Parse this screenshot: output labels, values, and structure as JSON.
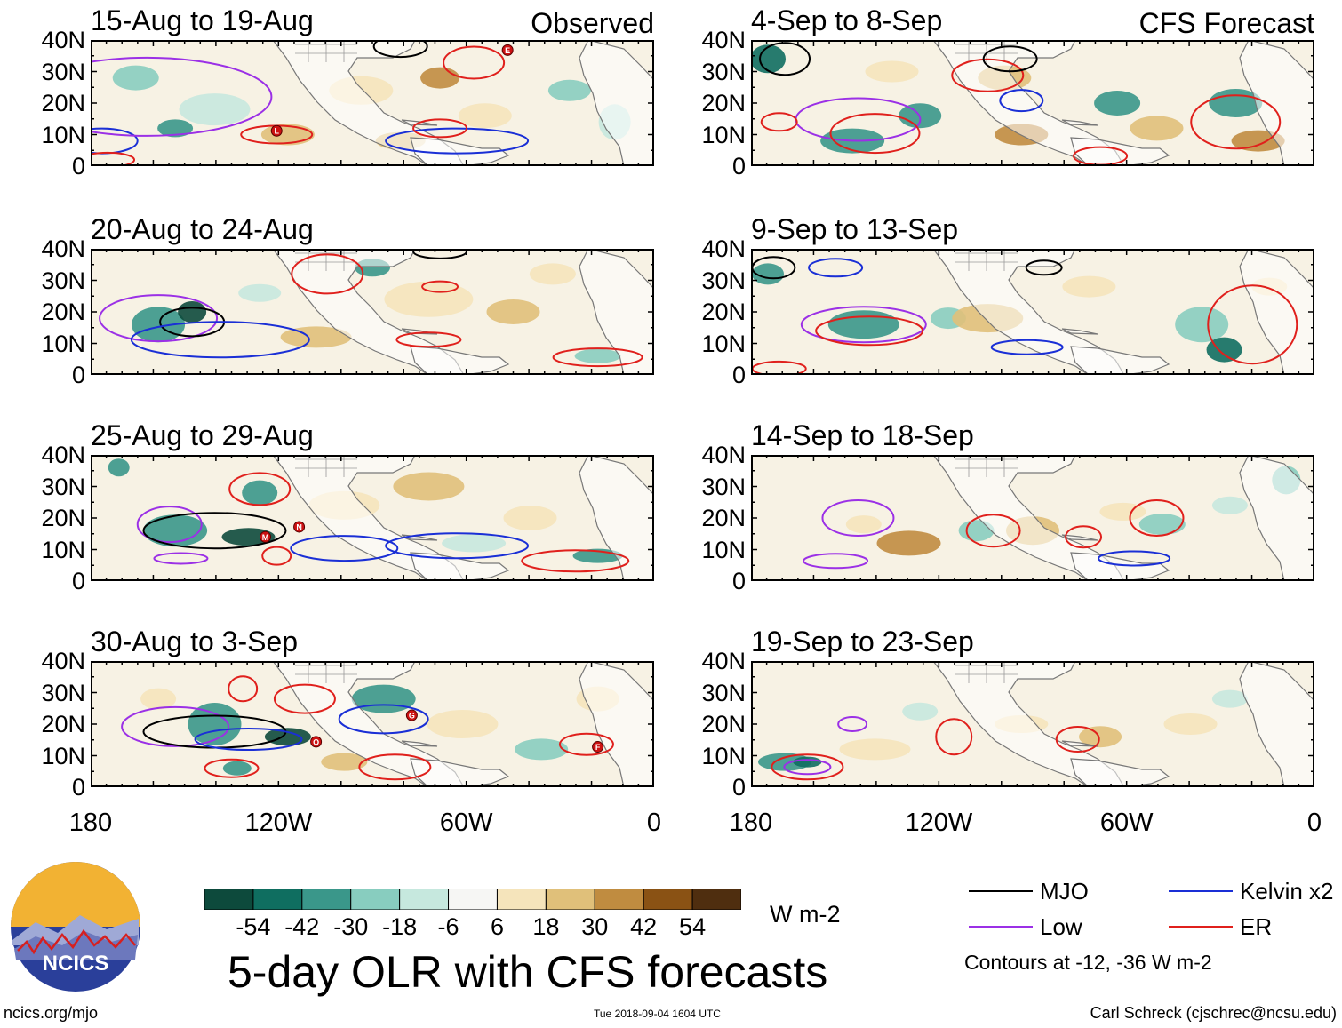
{
  "observed_label": "Observed",
  "forecast_label": "CFS Forecast",
  "main_title": "5-day OLR with CFS forecasts",
  "panels_observed": [
    {
      "period": "15-Aug to 19-Aug"
    },
    {
      "period": "20-Aug to 24-Aug"
    },
    {
      "period": "25-Aug to 29-Aug"
    },
    {
      "period": "30-Aug to 3-Sep"
    }
  ],
  "panels_forecast": [
    {
      "period": "4-Sep to 8-Sep"
    },
    {
      "period": "9-Sep to 13-Sep"
    },
    {
      "period": "14-Sep to 18-Sep"
    },
    {
      "period": "19-Sep to 23-Sep"
    }
  ],
  "y_ticks": [
    "40N",
    "30N",
    "20N",
    "10N",
    "0"
  ],
  "x_ticks": [
    "180",
    "120W",
    "60W",
    "0"
  ],
  "storm_markers_observed": [
    [
      "E",
      "L"
    ],
    [],
    [
      "M",
      "N"
    ],
    [
      "O",
      "G",
      "F"
    ]
  ],
  "colorbar": {
    "colors": [
      "#0d4a3c",
      "#0f6e60",
      "#3a978a",
      "#88cdbf",
      "#c6e8de",
      "#f6f6f4",
      "#f5e4bb",
      "#e0c07a",
      "#c08c40",
      "#8a5214",
      "#4f2e0f"
    ],
    "ticks": [
      "-54",
      "-42",
      "-30",
      "-18",
      "-6",
      "6",
      "18",
      "30",
      "42",
      "54"
    ],
    "units": "W m-2"
  },
  "legend": {
    "items": [
      {
        "label": "MJO",
        "color": "#000000"
      },
      {
        "label": "Kelvin x2",
        "color": "#1a2fd6"
      },
      {
        "label": "Low",
        "color": "#9b30e6"
      },
      {
        "label": "ER",
        "color": "#e0201c"
      }
    ],
    "note": "Contours at -12, -36 W m-2"
  },
  "logo_text": "NCICS",
  "footer": {
    "url": "ncics.org/mjo",
    "timestamp": "Tue 2018-09-04 1604 UTC",
    "credit": "Carl Schreck (cjschrec@ncsu.edu)"
  }
}
